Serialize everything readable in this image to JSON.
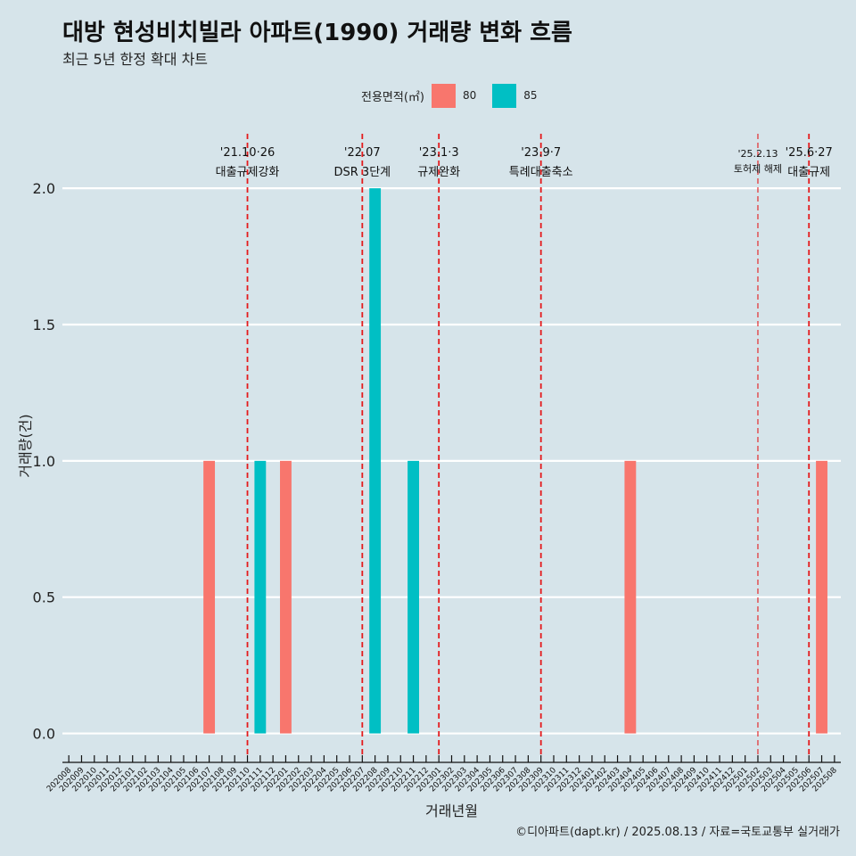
{
  "title": "대방 현성비치빌라 아파트(1990) 거래량 변화 흐름",
  "subtitle": "최근 5년 한정 확대 차트",
  "caption": "©디아파트(dapt.kr) / 2025.08.13 / 자료=국토교통부 실거래가",
  "legend": {
    "title": "전용면적(㎡)",
    "items": [
      {
        "label": "80",
        "color": "#f8766d"
      },
      {
        "label": "85",
        "color": "#00bfc4"
      }
    ]
  },
  "chart_data": {
    "type": "bar",
    "xlabel": "거래년월",
    "ylabel": "거래량(건)",
    "ylim": [
      -0.08,
      2.2
    ],
    "yticks": [
      0.0,
      0.5,
      1.0,
      1.5,
      2.0
    ],
    "ytick_labels": [
      "0.0",
      "0.5",
      "1.0",
      "1.5",
      "2.0"
    ],
    "grid": true,
    "legend_position": "top",
    "categories": [
      "202008",
      "202009",
      "202010",
      "202011",
      "202012",
      "202101",
      "202102",
      "202103",
      "202104",
      "202105",
      "202106",
      "202107",
      "202108",
      "202109",
      "202110",
      "202111",
      "202112",
      "202201",
      "202202",
      "202203",
      "202204",
      "202205",
      "202206",
      "202207",
      "202208",
      "202209",
      "202210",
      "202211",
      "202212",
      "202301",
      "202302",
      "202303",
      "202304",
      "202305",
      "202306",
      "202307",
      "202308",
      "202309",
      "202310",
      "202311",
      "202312",
      "202401",
      "202402",
      "202403",
      "202404",
      "202405",
      "202406",
      "202407",
      "202408",
      "202409",
      "202410",
      "202411",
      "202412",
      "202501",
      "202502",
      "202503",
      "202504",
      "202505",
      "202506",
      "202507",
      "202508"
    ],
    "series": [
      {
        "name": "80",
        "color": "#f8766d",
        "values": [
          {
            "x": "202107",
            "y": 1
          },
          {
            "x": "202201",
            "y": 1
          },
          {
            "x": "202404",
            "y": 1
          },
          {
            "x": "202507",
            "y": 1
          }
        ]
      },
      {
        "name": "85",
        "color": "#00bfc4",
        "values": [
          {
            "x": "202111",
            "y": 1
          },
          {
            "x": "202208",
            "y": 2
          },
          {
            "x": "202211",
            "y": 1
          }
        ]
      }
    ],
    "events": [
      {
        "x": "202110",
        "date": "'21.10·26",
        "label": "대출규제강화",
        "style": "major"
      },
      {
        "x": "202207",
        "date": "'22.07",
        "label": "DSR 3단계",
        "style": "major"
      },
      {
        "x": "202301",
        "date": "'23.1·3",
        "label": "규제완화",
        "style": "major"
      },
      {
        "x": "202309",
        "date": "'23.9·7",
        "label": "특례대출축소",
        "style": "major"
      },
      {
        "x": "202502",
        "date": "'25.2.13",
        "label": "토허제 해제",
        "style": "minor"
      },
      {
        "x": "202506",
        "date": "'25.6·27",
        "label": "대출규제",
        "style": "major"
      }
    ]
  }
}
